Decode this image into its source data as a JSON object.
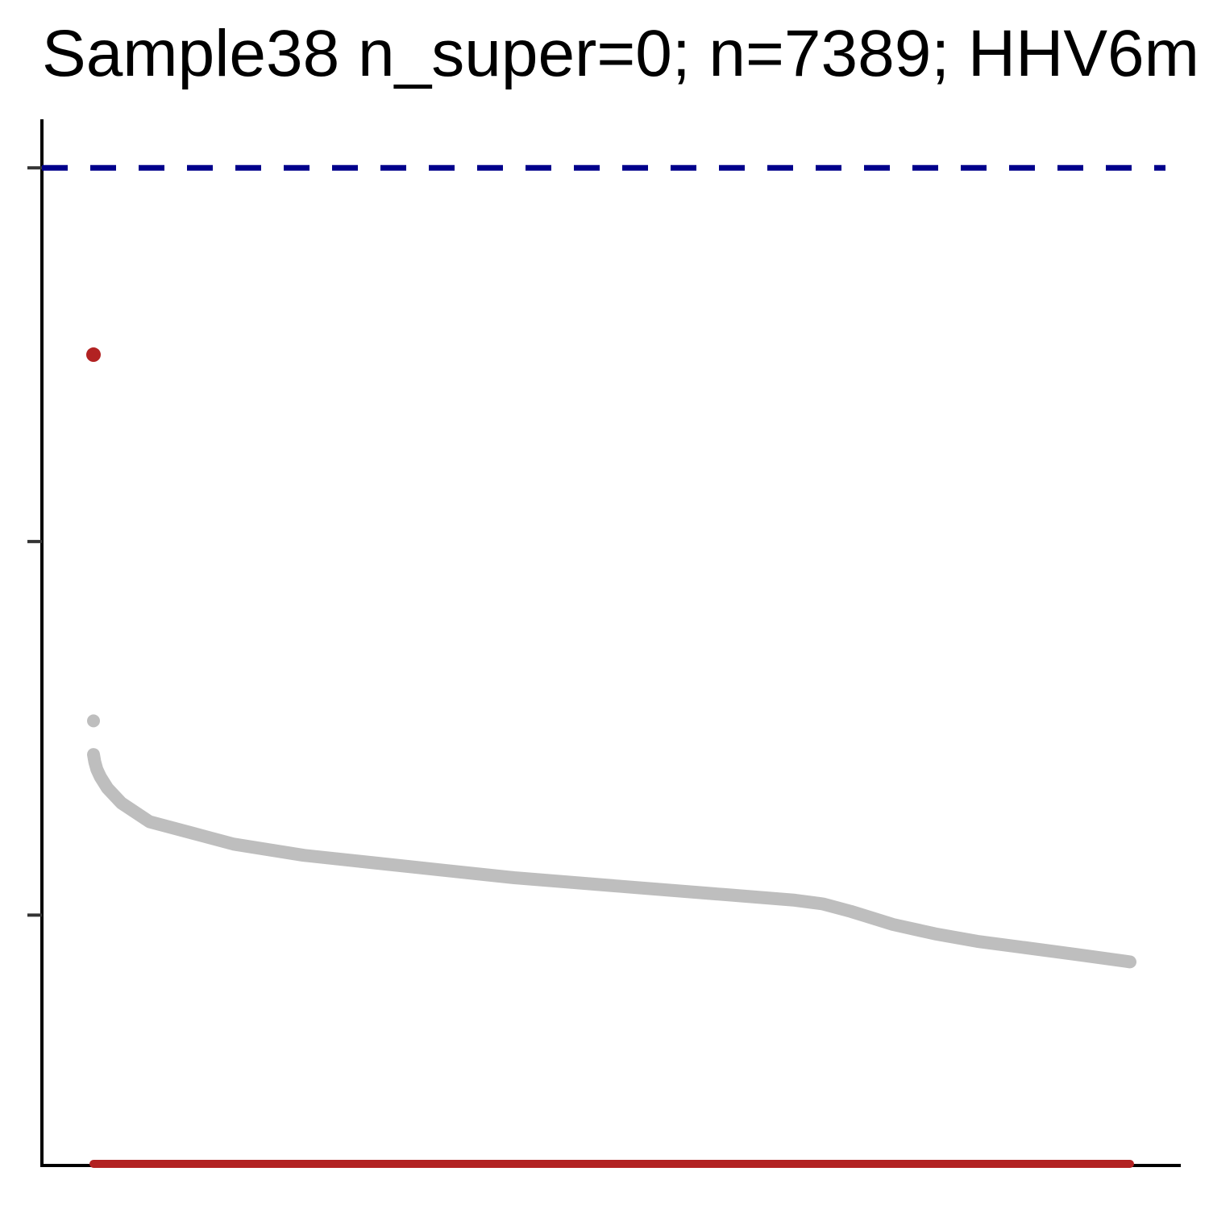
{
  "chart_data": {
    "type": "scatter",
    "title": "Sample38 n_super=0; n=7389; HHV6m",
    "xlabel": "",
    "ylabel": "",
    "x_count": 7389,
    "ylim": [
      0,
      2.8
    ],
    "y_ticks": [
      0.67,
      1.67,
      2.67
    ],
    "x_tick_labels": [],
    "y_tick_labels": [],
    "threshold_line": {
      "y": 2.67,
      "color": "#00008B",
      "style": "dashed"
    },
    "series": [
      {
        "color": "#BEBEBE",
        "points": [
          [
            1,
            1.1
          ],
          [
            10,
            1.08
          ],
          [
            25,
            1.06
          ],
          [
            50,
            1.04
          ],
          [
            100,
            1.01
          ],
          [
            200,
            0.97
          ],
          [
            400,
            0.92
          ],
          [
            700,
            0.89
          ],
          [
            1000,
            0.86
          ],
          [
            1500,
            0.83
          ],
          [
            2000,
            0.81
          ],
          [
            2500,
            0.79
          ],
          [
            3000,
            0.77
          ],
          [
            3500,
            0.755
          ],
          [
            4000,
            0.74
          ],
          [
            4500,
            0.725
          ],
          [
            5000,
            0.71
          ],
          [
            5200,
            0.7
          ],
          [
            5400,
            0.68
          ],
          [
            5700,
            0.645
          ],
          [
            6000,
            0.62
          ],
          [
            6300,
            0.6
          ],
          [
            6600,
            0.585
          ],
          [
            7000,
            0.565
          ],
          [
            7389,
            0.545
          ]
        ]
      },
      {
        "color": "#B22222",
        "points": [
          [
            1,
            2.17
          ]
        ]
      },
      {
        "color": "#B22222",
        "points": [
          [
            1,
            0.0
          ],
          [
            7389,
            0.0
          ]
        ]
      }
    ],
    "grid": false,
    "legend": "none"
  }
}
